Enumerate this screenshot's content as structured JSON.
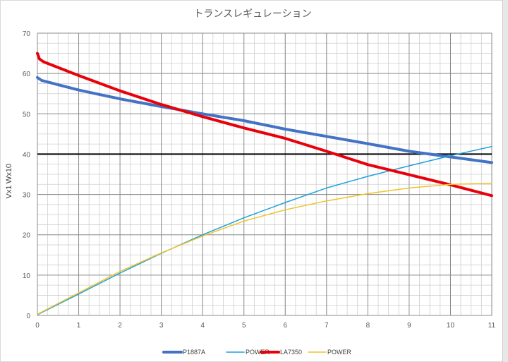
{
  "chart_data": {
    "type": "line",
    "title": "トランスレギュレーション",
    "ylabel_lines": [
      "Wx10",
      "Vx1"
    ],
    "xlim": [
      0,
      11
    ],
    "ylim": [
      0,
      70
    ],
    "x_ticks": [
      0,
      1,
      2,
      3,
      4,
      5,
      6,
      7,
      8,
      9,
      10,
      11
    ],
    "y_ticks": [
      0,
      10,
      20,
      30,
      40,
      50,
      60,
      70
    ],
    "grid": "major and minor (0.25 x, 2.5 y)",
    "reference_line": {
      "y": 40,
      "color": "#000000"
    },
    "legend_position": "bottom",
    "series": [
      {
        "name": "P1887A",
        "color": "#4472C4",
        "width": 4,
        "points": [
          [
            0,
            59
          ],
          [
            0.1,
            58.3
          ],
          [
            0.5,
            57.2
          ],
          [
            1,
            55.9
          ],
          [
            2,
            53.7
          ],
          [
            3,
            51.8
          ],
          [
            4,
            50.0
          ],
          [
            5,
            48.3
          ],
          [
            6,
            46.2
          ],
          [
            7,
            44.4
          ],
          [
            8,
            42.6
          ],
          [
            9,
            40.7
          ],
          [
            10,
            39.3
          ],
          [
            11,
            37.9
          ]
        ]
      },
      {
        "name": "POWER",
        "color": "#1FA2DD",
        "width": 1.5,
        "points": [
          [
            0,
            0.2
          ],
          [
            1,
            5.3
          ],
          [
            2,
            10.5
          ],
          [
            3,
            15.4
          ],
          [
            4,
            20.0
          ],
          [
            5,
            24.2
          ],
          [
            6,
            28.0
          ],
          [
            7,
            31.6
          ],
          [
            8,
            34.5
          ],
          [
            9,
            37.1
          ],
          [
            10,
            39.6
          ],
          [
            11,
            41.9
          ]
        ]
      },
      {
        "name": "LA7350",
        "color": "#E8000B",
        "width": 4,
        "points": [
          [
            0,
            65
          ],
          [
            0.05,
            63.6
          ],
          [
            0.15,
            62.9
          ],
          [
            1,
            59.5
          ],
          [
            2,
            55.7
          ],
          [
            3,
            52.3
          ],
          [
            4,
            49.3
          ],
          [
            5,
            46.5
          ],
          [
            6,
            43.9
          ],
          [
            7,
            40.7
          ],
          [
            8,
            37.4
          ],
          [
            9,
            34.9
          ],
          [
            10,
            32.4
          ],
          [
            11,
            29.7
          ]
        ]
      },
      {
        "name": "POWER",
        "color": "#F0C228",
        "width": 1.5,
        "points": [
          [
            0,
            0.3
          ],
          [
            1,
            5.6
          ],
          [
            2,
            10.9
          ],
          [
            3,
            15.5
          ],
          [
            4,
            19.7
          ],
          [
            5,
            23.4
          ],
          [
            6,
            26.2
          ],
          [
            7,
            28.4
          ],
          [
            8,
            30.2
          ],
          [
            9,
            31.6
          ],
          [
            10,
            32.5
          ],
          [
            11,
            32.8
          ]
        ]
      }
    ]
  }
}
